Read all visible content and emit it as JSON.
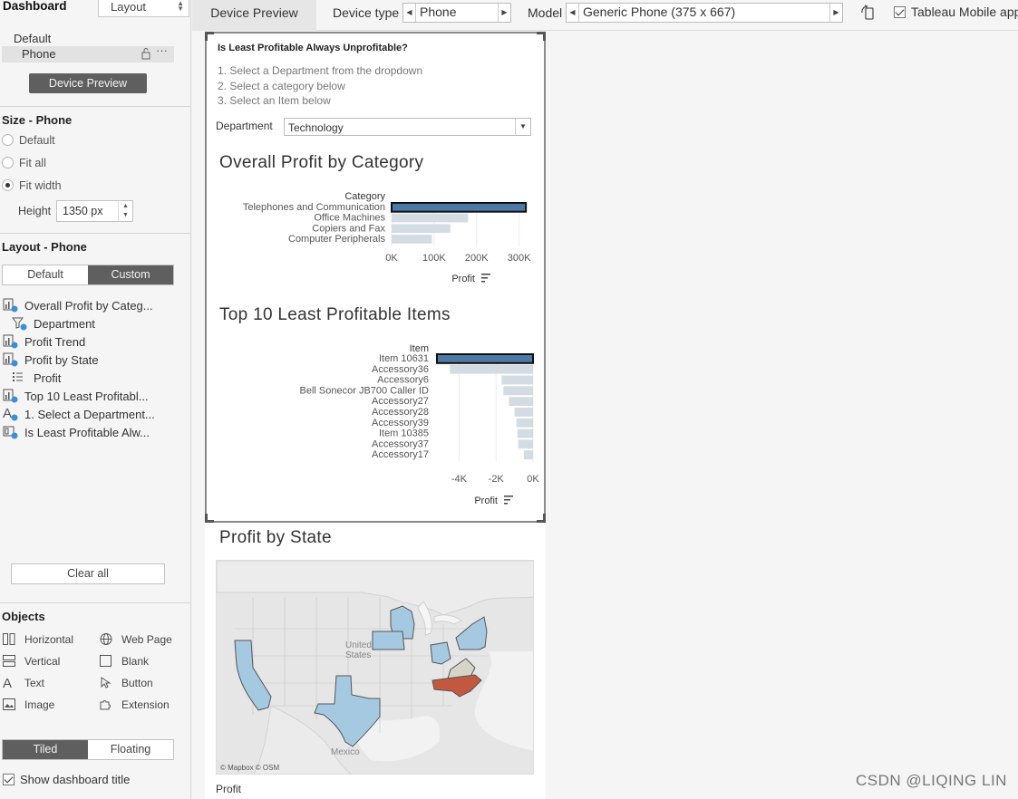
{
  "left_panel": {
    "tab_dashboard": "Dashboard",
    "tab_layout": "Layout",
    "device_default": "Default",
    "device_phone": "Phone",
    "device_preview_button": "Device Preview",
    "size_title": "Size - Phone",
    "size_options": [
      "Default",
      "Fit all",
      "Fit width"
    ],
    "size_selected": "Fit width",
    "height_label": "Height",
    "height_value": "1350 px",
    "layout_title": "Layout - Phone",
    "layout_default": "Default",
    "layout_custom": "Custom",
    "items": [
      "Overall Profit by Categ...",
      "Department",
      "Profit Trend",
      "Profit by State",
      "Profit",
      "Top 10 Least Profitabl...",
      "1. Select a Department...",
      "Is Least Profitable Alw..."
    ],
    "clear_all": "Clear all",
    "objects_title": "Objects",
    "objects": [
      "Horizontal",
      "Web Page",
      "Vertical",
      "Blank",
      "Text",
      "Button",
      "Image",
      "Extension"
    ],
    "tiled": "Tiled",
    "floating": "Floating",
    "show_title": "Show dashboard title"
  },
  "toolbar": {
    "device_preview_tab": "Device Preview",
    "device_type_label": "Device type",
    "device_type_value": "Phone",
    "model_label": "Model",
    "model_value": "Generic Phone (375 x 667)",
    "tableau_mobile": "Tableau Mobile app"
  },
  "dashboard": {
    "question": "Is Least Profitable Always Unprofitable?",
    "steps": [
      "1. Select a Department from the dropdown",
      "2. Select a category below",
      "3. Select an Item below"
    ],
    "department_label": "Department",
    "department_value": "Technology",
    "chart1_title": "Overall Profit by Category",
    "chart2_title": "Top 10 Least Profitable Items",
    "map_title": "Profit by State",
    "map_credit": "© Mapbox © OSM",
    "map_label_us": "United States",
    "map_label_mexico": "Mexico",
    "legend_label": "Profit"
  },
  "chart_data": [
    {
      "type": "bar",
      "orientation": "horizontal",
      "title": "Overall Profit by Category",
      "ylabel": "Category",
      "xlabel": "Profit",
      "categories": [
        "Telephones and Communication",
        "Office Machines",
        "Copiers and Fax",
        "Computer Peripherals"
      ],
      "values": [
        316000,
        180000,
        138000,
        95000
      ],
      "selected": "Telephones and Communication",
      "xlim": [
        0,
        320000
      ],
      "xticks": [
        "0K",
        "100K",
        "200K",
        "300K"
      ],
      "colors": {
        "selected": "#4e79a7",
        "other": "#d3dbe3"
      }
    },
    {
      "type": "bar",
      "orientation": "horizontal",
      "title": "Top 10 Least Profitable Items",
      "ylabel": "Item",
      "xlabel": "Profit",
      "categories": [
        "Item 10631",
        "Accessory36",
        "Accessory6",
        "Bell Sonecor JB700 Caller ID",
        "Accessory27",
        "Accessory28",
        "Accessory39",
        "Item 10385",
        "Accessory37",
        "Accessory17"
      ],
      "values": [
        -5200,
        -4500,
        -1700,
        -1600,
        -1300,
        -1000,
        -900,
        -850,
        -800,
        -500
      ],
      "selected": "Item 10631",
      "xlim": [
        -5200,
        0
      ],
      "xticks": [
        "-4K",
        "-2K",
        "0K"
      ],
      "colors": {
        "selected": "#4e79a7",
        "other": "#d3dbe3"
      }
    }
  ]
}
